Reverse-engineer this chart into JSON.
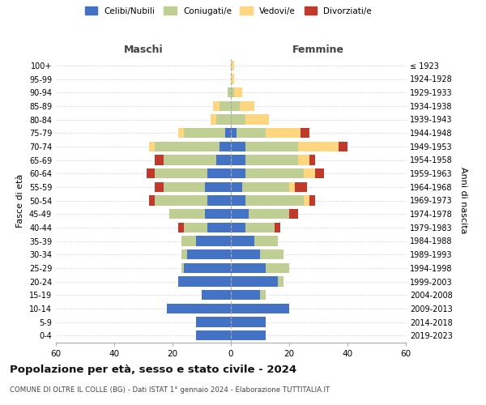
{
  "age_groups": [
    "0-4",
    "5-9",
    "10-14",
    "15-19",
    "20-24",
    "25-29",
    "30-34",
    "35-39",
    "40-44",
    "45-49",
    "50-54",
    "55-59",
    "60-64",
    "65-69",
    "70-74",
    "75-79",
    "80-84",
    "85-89",
    "90-94",
    "95-99",
    "100+"
  ],
  "birth_years": [
    "2019-2023",
    "2014-2018",
    "2009-2013",
    "2004-2008",
    "1999-2003",
    "1994-1998",
    "1989-1993",
    "1984-1988",
    "1979-1983",
    "1974-1978",
    "1969-1973",
    "1964-1968",
    "1959-1963",
    "1954-1958",
    "1949-1953",
    "1944-1948",
    "1939-1943",
    "1934-1938",
    "1929-1933",
    "1924-1928",
    "≤ 1923"
  ],
  "males": {
    "celibi": [
      12,
      12,
      22,
      10,
      18,
      16,
      15,
      12,
      8,
      9,
      8,
      9,
      8,
      5,
      4,
      2,
      0,
      0,
      0,
      0,
      0
    ],
    "coniugati": [
      0,
      0,
      0,
      0,
      0,
      1,
      2,
      5,
      8,
      12,
      18,
      14,
      18,
      18,
      22,
      14,
      5,
      4,
      1,
      0,
      0
    ],
    "vedovi": [
      0,
      0,
      0,
      0,
      0,
      0,
      0,
      0,
      0,
      0,
      0,
      0,
      0,
      0,
      2,
      2,
      2,
      2,
      0,
      0,
      0
    ],
    "divorziati": [
      0,
      0,
      0,
      0,
      0,
      0,
      0,
      0,
      2,
      0,
      2,
      3,
      3,
      3,
      0,
      0,
      0,
      0,
      0,
      0,
      0
    ]
  },
  "females": {
    "nubili": [
      12,
      12,
      20,
      10,
      16,
      12,
      10,
      8,
      5,
      6,
      5,
      4,
      5,
      5,
      5,
      2,
      0,
      0,
      0,
      0,
      0
    ],
    "coniugate": [
      0,
      0,
      0,
      2,
      2,
      8,
      8,
      8,
      10,
      14,
      20,
      16,
      20,
      18,
      18,
      10,
      5,
      3,
      1,
      0,
      0
    ],
    "vedove": [
      0,
      0,
      0,
      0,
      0,
      0,
      0,
      0,
      0,
      0,
      2,
      2,
      4,
      4,
      14,
      12,
      8,
      5,
      3,
      1,
      1
    ],
    "divorziate": [
      0,
      0,
      0,
      0,
      0,
      0,
      0,
      0,
      2,
      3,
      2,
      4,
      3,
      2,
      3,
      3,
      0,
      0,
      0,
      0,
      0
    ]
  },
  "colors": {
    "celibi_nubili": "#4472C4",
    "coniugati": "#BFCE93",
    "vedovi": "#FFD580",
    "divorziati": "#C0392B"
  },
  "xlim": 60,
  "title": "Popolazione per età, sesso e stato civile - 2024",
  "subtitle": "COMUNE DI OLTRE IL COLLE (BG) - Dati ISTAT 1° gennaio 2024 - Elaborazione TUTTITALIA.IT",
  "xlabel_left": "Maschi",
  "xlabel_right": "Femmine",
  "ylabel_left": "Fasce di età",
  "ylabel_right": "Anni di nascita",
  "background_color": "#ffffff",
  "grid_color": "#cccccc"
}
